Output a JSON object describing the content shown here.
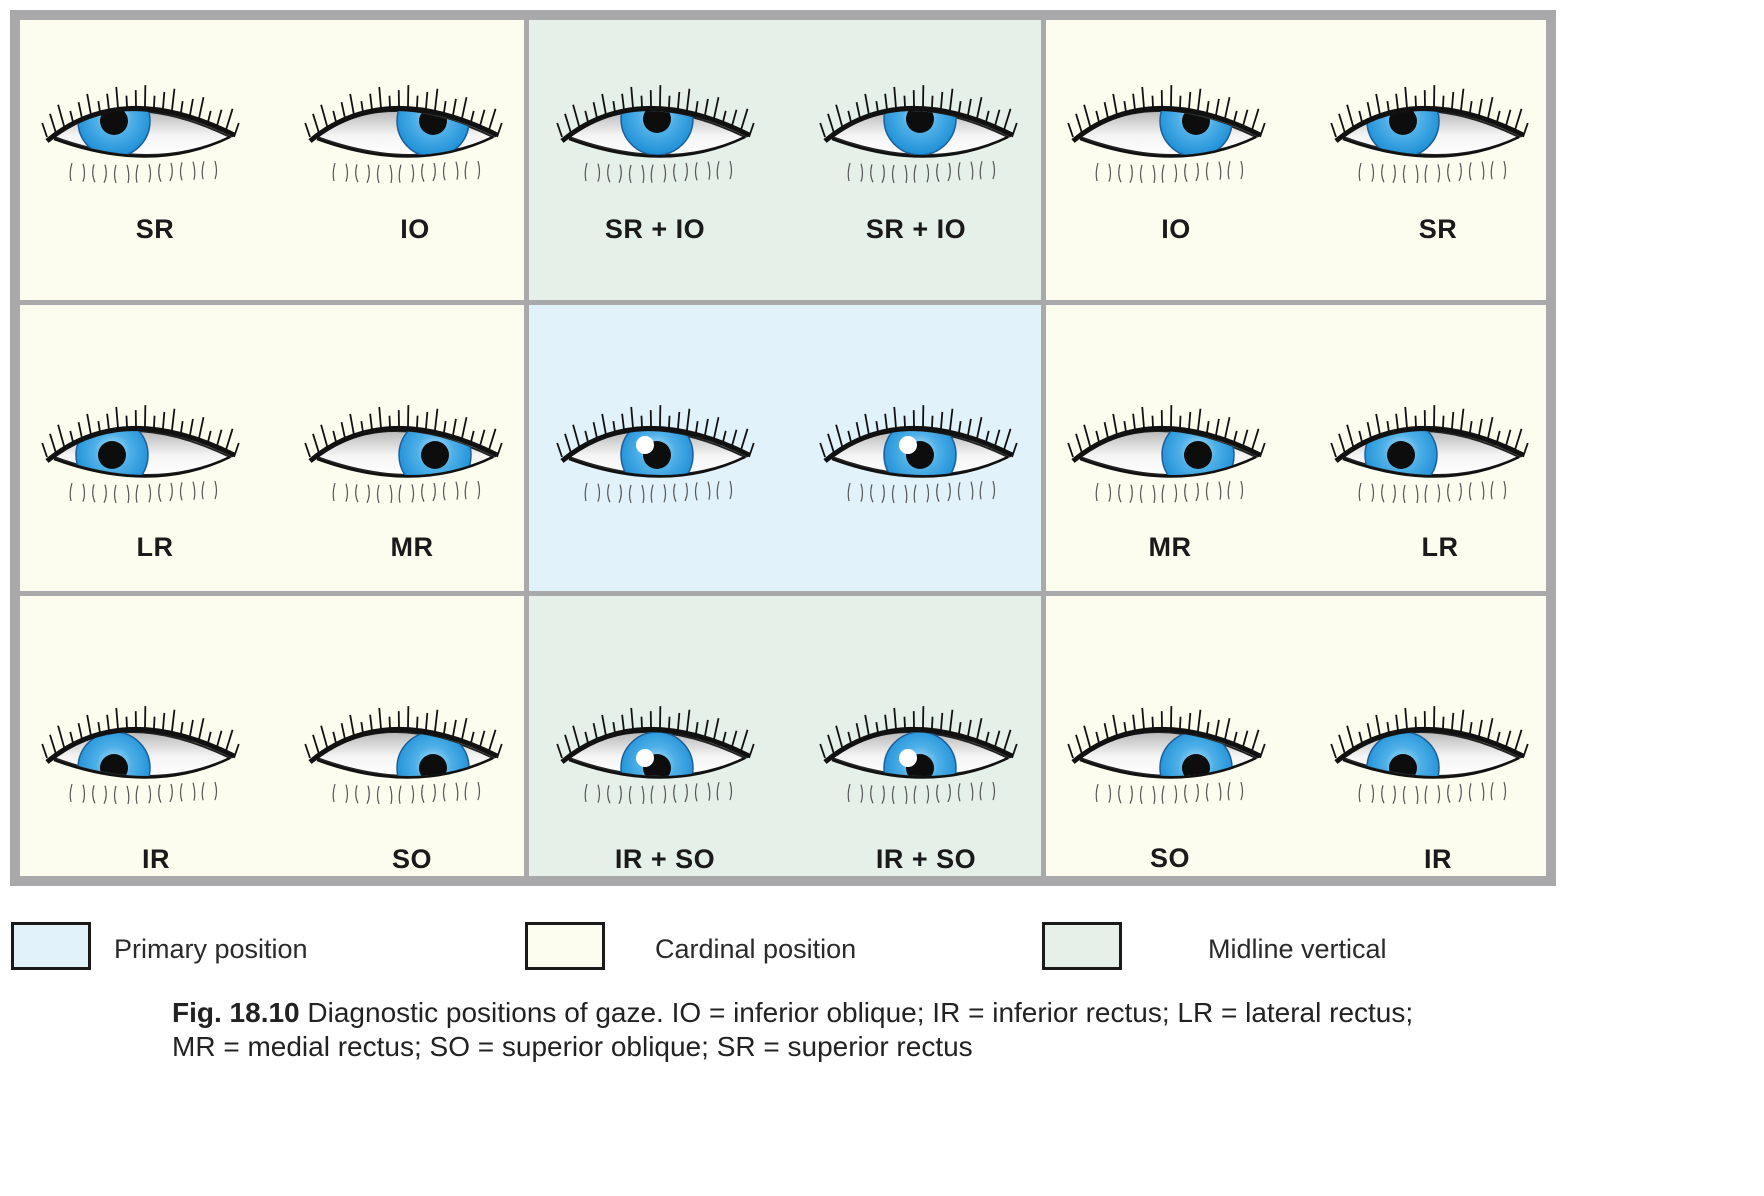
{
  "colors": {
    "cardinal": "#fdfdef",
    "primary": "#e2f2fb",
    "midline": "#e5f0e8",
    "grid_line": "#a9a9ab",
    "iris": "#1e8fd6"
  },
  "grid": {
    "rows": [
      {
        "cells": [
          {
            "type": "cardinal",
            "eyes": [
              {
                "label": "SR",
                "gaze": "up-right"
              },
              {
                "label": "IO",
                "gaze": "up-right"
              }
            ]
          },
          {
            "type": "midline",
            "eyes": [
              {
                "label": "SR + IO",
                "gaze": "up"
              },
              {
                "label": "SR + IO",
                "gaze": "up"
              }
            ]
          },
          {
            "type": "cardinal",
            "eyes": [
              {
                "label": "IO",
                "gaze": "up-left"
              },
              {
                "label": "SR",
                "gaze": "up-left"
              }
            ]
          }
        ]
      },
      {
        "cells": [
          {
            "type": "cardinal",
            "eyes": [
              {
                "label": "LR",
                "gaze": "right"
              },
              {
                "label": "MR",
                "gaze": "right"
              }
            ]
          },
          {
            "type": "primary",
            "eyes": [
              {
                "label": "",
                "gaze": "center"
              },
              {
                "label": "",
                "gaze": "center"
              }
            ]
          },
          {
            "type": "cardinal",
            "eyes": [
              {
                "label": "MR",
                "gaze": "left"
              },
              {
                "label": "LR",
                "gaze": "left"
              }
            ]
          }
        ]
      },
      {
        "cells": [
          {
            "type": "cardinal",
            "eyes": [
              {
                "label": "IR",
                "gaze": "down-right"
              },
              {
                "label": "SO",
                "gaze": "down-right"
              }
            ]
          },
          {
            "type": "midline",
            "eyes": [
              {
                "label": "IR + SO",
                "gaze": "down"
              },
              {
                "label": "IR + SO",
                "gaze": "down"
              }
            ]
          },
          {
            "type": "cardinal",
            "eyes": [
              {
                "label": "SO",
                "gaze": "down-left"
              },
              {
                "label": "IR",
                "gaze": "down-left"
              }
            ]
          }
        ]
      }
    ]
  },
  "legend": {
    "primary": "Primary position",
    "cardinal": "Cardinal position",
    "midline": "Midline vertical"
  },
  "caption": {
    "fig_label": "Fig. 18.10",
    "text": "Diagnostic positions of gaze. IO = inferior oblique; IR = inferior rectus; LR = lateral rectus; MR = medial rectus; SO = superior oblique; SR = superior rectus"
  }
}
